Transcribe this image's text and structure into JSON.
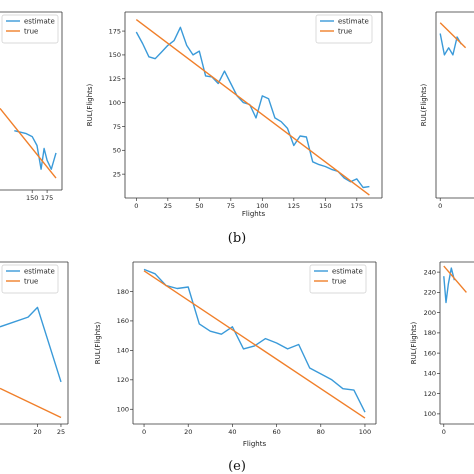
{
  "colors": {
    "estimate": "#3a9ad9",
    "true": "#f07f2a",
    "axis": "#333333"
  },
  "captions": [
    "(b)",
    "(e)"
  ],
  "chart_data": [
    {
      "id": "top-left",
      "type": "line",
      "xlabel": "",
      "ylabel": "",
      "xlim": [
        96,
        200
      ],
      "ylim": [
        0,
        120
      ],
      "xticks": [
        150,
        175
      ],
      "yticks": [],
      "legend": {
        "entries": [
          "estimate",
          "true"
        ],
        "placement": "top-left"
      },
      "series": [
        {
          "name": "estimate",
          "x": [
            120,
            140,
            150,
            158,
            165,
            170,
            175,
            182,
            190
          ],
          "y": [
            40,
            38,
            36,
            30,
            14,
            28,
            20,
            14,
            25
          ]
        },
        {
          "name": "true",
          "x": [
            96,
            190
          ],
          "y": [
            55,
            8
          ]
        }
      ]
    },
    {
      "id": "top-middle",
      "type": "line",
      "xlabel": "Flights",
      "ylabel": "RUL(Flights)",
      "xlim": [
        -9,
        195
      ],
      "ylim": [
        0,
        195
      ],
      "xticks": [
        0,
        25,
        50,
        75,
        100,
        125,
        150,
        175
      ],
      "yticks": [
        25,
        50,
        75,
        100,
        125,
        150,
        175
      ],
      "legend": {
        "entries": [
          "estimate",
          "true"
        ],
        "placement": "top-right"
      },
      "series": [
        {
          "name": "estimate",
          "x": [
            0,
            5,
            10,
            15,
            20,
            25,
            30,
            35,
            40,
            45,
            50,
            55,
            60,
            65,
            70,
            75,
            80,
            85,
            90,
            95,
            100,
            105,
            110,
            115,
            120,
            125,
            130,
            135,
            140,
            145,
            150,
            155,
            160,
            165,
            170,
            175,
            180,
            185
          ],
          "y": [
            174,
            162,
            148,
            146,
            153,
            160,
            165,
            179,
            160,
            150,
            154,
            128,
            127,
            120,
            133,
            120,
            107,
            100,
            98,
            84,
            107,
            104,
            84,
            80,
            73,
            55,
            65,
            64,
            38,
            35,
            33,
            30,
            28,
            21,
            17,
            20,
            11,
            12
          ]
        },
        {
          "name": "true",
          "x": [
            0,
            185
          ],
          "y": [
            187,
            3
          ]
        }
      ]
    },
    {
      "id": "top-right",
      "type": "line",
      "xlabel": "",
      "ylabel": "RUL(Flights)",
      "xlim": [
        -5,
        40
      ],
      "ylim": [
        0,
        260
      ],
      "xticks": [
        0
      ],
      "yticks": [],
      "legend": {
        "entries": [],
        "placement": ""
      },
      "series": [
        {
          "name": "estimate",
          "x": [
            0,
            5,
            10,
            15,
            20,
            25
          ],
          "y": [
            230,
            200,
            210,
            200,
            225,
            215
          ]
        },
        {
          "name": "true",
          "x": [
            0,
            30
          ],
          "y": [
            245,
            210
          ]
        }
      ]
    },
    {
      "id": "bottom-left",
      "type": "line",
      "xlabel": "",
      "ylabel": "",
      "xlim": [
        12,
        26.5
      ],
      "ylim": [
        0,
        100
      ],
      "xticks": [
        20,
        25
      ],
      "yticks": [],
      "legend": {
        "entries": [
          "estimate",
          "true"
        ],
        "placement": "top-left"
      },
      "series": [
        {
          "name": "estimate",
          "x": [
            12,
            18,
            20,
            25
          ],
          "y": [
            60,
            66,
            72,
            26
          ]
        },
        {
          "name": "true",
          "x": [
            12,
            25
          ],
          "y": [
            22,
            4
          ]
        }
      ]
    },
    {
      "id": "bottom-middle",
      "type": "line",
      "xlabel": "Flights",
      "ylabel": "RUL(Flights)",
      "xlim": [
        -5,
        105
      ],
      "ylim": [
        90,
        200
      ],
      "xticks": [
        0,
        20,
        40,
        60,
        80,
        100
      ],
      "yticks": [
        100,
        120,
        140,
        160,
        180
      ],
      "legend": {
        "entries": [
          "estimate",
          "true"
        ],
        "placement": "top-right"
      },
      "series": [
        {
          "name": "estimate",
          "x": [
            0,
            5,
            10,
            15,
            20,
            25,
            30,
            35,
            40,
            45,
            50,
            55,
            60,
            65,
            70,
            75,
            80,
            85,
            90,
            95,
            100
          ],
          "y": [
            195,
            192,
            184,
            182,
            183,
            158,
            153,
            151,
            156,
            141,
            143,
            148,
            145,
            141,
            144,
            128,
            124,
            120,
            114,
            113,
            98
          ]
        },
        {
          "name": "true",
          "x": [
            0,
            100
          ],
          "y": [
            194,
            94
          ]
        }
      ]
    },
    {
      "id": "bottom-right",
      "type": "line",
      "xlabel": "",
      "ylabel": "RUL(Flights)",
      "xlim": [
        -5,
        40
      ],
      "ylim": [
        90,
        250
      ],
      "xticks": [
        0
      ],
      "yticks": [
        100,
        120,
        140,
        160,
        180,
        200,
        220,
        240
      ],
      "legend": {
        "entries": [],
        "placement": ""
      },
      "series": [
        {
          "name": "estimate",
          "x": [
            0,
            3,
            6,
            10,
            14
          ],
          "y": [
            236,
            210,
            228,
            244,
            232
          ]
        },
        {
          "name": "true",
          "x": [
            0,
            30
          ],
          "y": [
            246,
            220
          ]
        }
      ]
    }
  ]
}
